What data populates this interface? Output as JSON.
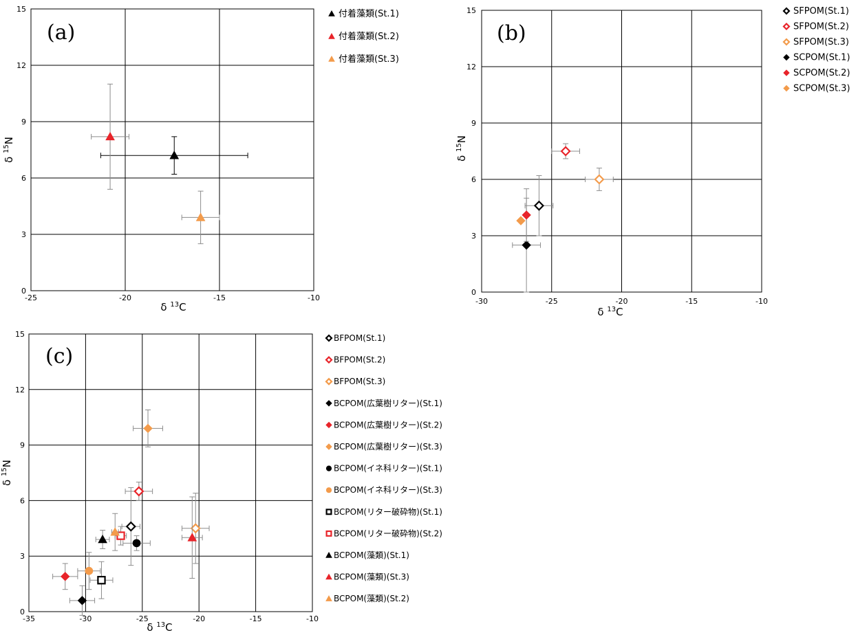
{
  "chart_data": [
    {
      "type": "scatter",
      "panel_label": "(a)",
      "xlabel": "δ 13C",
      "ylabel": "δ 15N",
      "xlim": [
        -25,
        -10
      ],
      "ylim": [
        0,
        15
      ],
      "xticks": [
        "-25",
        "-20",
        "-15",
        "-10"
      ],
      "yticks": [
        "0",
        "3",
        "6",
        "9",
        "12",
        "15"
      ],
      "grid": true,
      "legend_position": "right",
      "series": [
        {
          "name": "付着藻類(St.1)",
          "marker": "triangle",
          "color": "#000000",
          "filled": true,
          "x": -17.4,
          "y": 7.2,
          "xerr": 3.9,
          "yerr": 1.0,
          "err_color": "#000000"
        },
        {
          "name": "付着藻類(St.2)",
          "marker": "triangle",
          "color": "#e8242a",
          "filled": true,
          "x": -20.8,
          "y": 8.2,
          "xerr": 1.0,
          "yerr": 2.8,
          "err_color": "#8c8c8c"
        },
        {
          "name": "付着藻類(St.3)",
          "marker": "triangle",
          "color": "#f39b4b",
          "filled": true,
          "x": -16.0,
          "y": 3.9,
          "xerr": 1.0,
          "yerr": 1.4,
          "err_color": "#8c8c8c"
        }
      ]
    },
    {
      "type": "scatter",
      "panel_label": "(b)",
      "xlabel": "δ 13C",
      "ylabel": "δ 15N",
      "xlim": [
        -30,
        -10
      ],
      "ylim": [
        0,
        15
      ],
      "xticks": [
        "-30",
        "-25",
        "-20",
        "-15",
        "-10"
      ],
      "yticks": [
        "0",
        "3",
        "6",
        "9",
        "12",
        "15"
      ],
      "grid": true,
      "legend_position": "right",
      "series": [
        {
          "name": "SFPOM(St.1)",
          "marker": "diamond",
          "color": "#000000",
          "filled": false,
          "x": -25.9,
          "y": 4.6,
          "xerr": 1.0,
          "yerr": 1.6,
          "err_color": "#8c8c8c"
        },
        {
          "name": "SFPOM(St.2)",
          "marker": "diamond",
          "color": "#e8242a",
          "filled": false,
          "x": -24.0,
          "y": 7.5,
          "xerr": 1.0,
          "yerr": 0.4,
          "err_color": "#8c8c8c"
        },
        {
          "name": "SFPOM(St.3)",
          "marker": "diamond",
          "color": "#f39b4b",
          "filled": false,
          "x": -21.6,
          "y": 6.0,
          "xerr": 1.0,
          "yerr": 0.6,
          "err_color": "#8c8c8c"
        },
        {
          "name": "SCPOM(St.1)",
          "marker": "diamond",
          "color": "#000000",
          "filled": true,
          "x": -26.8,
          "y": 2.5,
          "xerr": 1.0,
          "yerr": 2.5,
          "err_color": "#8c8c8c"
        },
        {
          "name": "SCPOM(St.2)",
          "marker": "diamond",
          "color": "#e8242a",
          "filled": true,
          "x": -26.8,
          "y": 4.1,
          "xerr": 0,
          "yerr": 1.4,
          "err_color": "#8c8c8c"
        },
        {
          "name": "SCPOM(St.3)",
          "marker": "diamond",
          "color": "#f39b4b",
          "filled": true,
          "x": -27.2,
          "y": 3.8,
          "xerr": 0,
          "yerr": 0,
          "err_color": "#8c8c8c"
        }
      ]
    },
    {
      "type": "scatter",
      "panel_label": "(c)",
      "xlabel": "δ 13C",
      "ylabel": "δ 15N",
      "xlim": [
        -35,
        -10
      ],
      "ylim": [
        0,
        15
      ],
      "xticks": [
        "-35",
        "-30",
        "-25",
        "-20",
        "-15",
        "-10"
      ],
      "yticks": [
        "0",
        "3",
        "6",
        "9",
        "12",
        "15"
      ],
      "grid": true,
      "legend_position": "right",
      "series": [
        {
          "name": "BFPOM(St.1)",
          "marker": "diamond",
          "color": "#000000",
          "filled": false,
          "x": -26.0,
          "y": 4.6,
          "xerr": 0.8,
          "yerr": 2.1,
          "err_color": "#8c8c8c"
        },
        {
          "name": "BFPOM(St.2)",
          "marker": "diamond",
          "color": "#e8242a",
          "filled": false,
          "x": -25.3,
          "y": 6.5,
          "xerr": 1.2,
          "yerr": 0.5,
          "err_color": "#8c8c8c"
        },
        {
          "name": "BFPOM(St.3)",
          "marker": "diamond",
          "color": "#f39b4b",
          "filled": false,
          "x": -20.3,
          "y": 4.5,
          "xerr": 1.2,
          "yerr": 1.9,
          "err_color": "#8c8c8c"
        },
        {
          "name": "BCPOM(広葉樹リター)(St.1)",
          "marker": "diamond",
          "color": "#000000",
          "filled": true,
          "x": -30.3,
          "y": 0.6,
          "xerr": 1.1,
          "yerr": 0.8,
          "err_color": "#8c8c8c"
        },
        {
          "name": "BCPOM(広葉樹リター)(St.2)",
          "marker": "diamond",
          "color": "#e8242a",
          "filled": true,
          "x": -31.8,
          "y": 1.9,
          "xerr": 1.1,
          "yerr": 0.7,
          "err_color": "#8c8c8c"
        },
        {
          "name": "BCPOM(広葉樹リター)(St.3)",
          "marker": "diamond",
          "color": "#f39b4b",
          "filled": true,
          "x": -24.5,
          "y": 9.9,
          "xerr": 1.3,
          "yerr": 1.0,
          "err_color": "#8c8c8c"
        },
        {
          "name": "BCPOM(イネ科リター)(St.1)",
          "marker": "circle",
          "color": "#000000",
          "filled": true,
          "x": -25.5,
          "y": 3.7,
          "xerr": 1.2,
          "yerr": 0.4,
          "err_color": "#8c8c8c"
        },
        {
          "name": "BCPOM(イネ科リター)(St.3)",
          "marker": "circle",
          "color": "#f39b4b",
          "filled": true,
          "x": -29.7,
          "y": 2.2,
          "xerr": 1.0,
          "yerr": 1.0,
          "err_color": "#8c8c8c"
        },
        {
          "name": "BCPOM(リター破砕物)(St.1)",
          "marker": "square",
          "color": "#000000",
          "filled": false,
          "x": -28.6,
          "y": 1.7,
          "xerr": 1.0,
          "yerr": 1.0,
          "err_color": "#8c8c8c"
        },
        {
          "name": "BCPOM(リター破砕物)(St.2)",
          "marker": "square",
          "color": "#e8242a",
          "filled": false,
          "x": -26.9,
          "y": 4.1,
          "xerr": 0.5,
          "yerr": 0.5,
          "err_color": "#8c8c8c"
        },
        {
          "name": "BCPOM(藻類)(St.1)",
          "marker": "triangle",
          "color": "#000000",
          "filled": true,
          "x": -28.5,
          "y": 3.9,
          "xerr": 0.6,
          "yerr": 0.5,
          "err_color": "#8c8c8c"
        },
        {
          "name": "BCPOM(藻類)(St.3)",
          "marker": "triangle",
          "color": "#e8242a",
          "filled": true,
          "x": -20.6,
          "y": 4.0,
          "xerr": 0.9,
          "yerr": 2.2,
          "err_color": "#8c8c8c"
        },
        {
          "name": "BCPOM(藻類)(St.2)",
          "marker": "triangle",
          "color": "#f39b4b",
          "filled": true,
          "x": -27.4,
          "y": 4.3,
          "xerr": 0.3,
          "yerr": 1.0,
          "err_color": "#8c8c8c"
        }
      ]
    }
  ]
}
